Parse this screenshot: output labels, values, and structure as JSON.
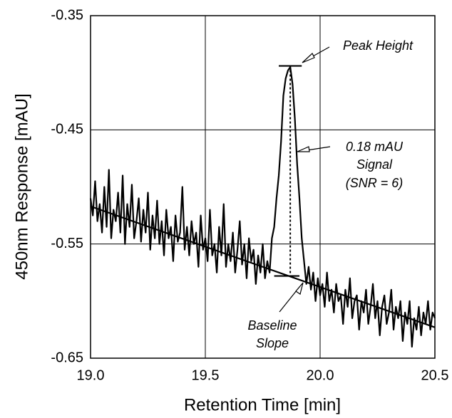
{
  "chart_data": {
    "type": "line",
    "xlabel": "Retention Time [min]",
    "ylabel": "450nm Response [mAU]",
    "xlim": [
      19,
      20.5
    ],
    "ylim": [
      -0.65,
      -0.35
    ],
    "xticks": [
      {
        "value": 19,
        "label": "19.0"
      },
      19.5,
      {
        "value": 20,
        "label": "20.0"
      },
      20.5
    ],
    "yticks": [
      -0.35,
      -0.45,
      -0.55,
      -0.65
    ],
    "grid": true,
    "color": "#000000",
    "annotations": {
      "peak": "Peak Height",
      "signal": [
        "0.18 mAU",
        "Signal",
        "(SNR = 6)"
      ],
      "baseline": [
        "Baseline",
        "Slope"
      ]
    },
    "series": [
      {
        "color": "#000000",
        "style": "signal",
        "x": [
          19.0,
          19.01,
          19.02,
          19.03,
          19.04,
          19.05,
          19.06,
          19.07,
          19.08,
          19.09,
          19.1,
          19.11,
          19.12,
          19.13,
          19.14,
          19.15,
          19.16,
          19.17,
          19.18,
          19.19,
          19.2,
          19.21,
          19.22,
          19.23,
          19.24,
          19.25,
          19.26,
          19.27,
          19.28,
          19.29,
          19.3,
          19.31,
          19.32,
          19.33,
          19.34,
          19.35,
          19.36,
          19.37,
          19.38,
          19.39,
          19.4,
          19.41,
          19.42,
          19.43,
          19.44,
          19.45,
          19.46,
          19.47,
          19.48,
          19.49,
          19.5,
          19.51,
          19.52,
          19.53,
          19.54,
          19.55,
          19.56,
          19.57,
          19.58,
          19.59,
          19.6,
          19.61,
          19.62,
          19.63,
          19.64,
          19.65,
          19.66,
          19.67,
          19.68,
          19.69,
          19.7,
          19.71,
          19.72,
          19.73,
          19.74,
          19.75,
          19.76,
          19.77,
          19.78,
          19.79,
          19.8,
          19.81,
          19.82,
          19.83,
          19.84,
          19.85,
          19.86,
          19.87,
          19.88,
          19.89,
          19.9,
          19.91,
          19.92,
          19.93,
          19.94,
          19.95,
          19.96,
          19.97,
          19.98,
          19.99,
          20.0,
          20.01,
          20.02,
          20.03,
          20.04,
          20.05,
          20.06,
          20.07,
          20.08,
          20.09,
          20.1,
          20.11,
          20.12,
          20.13,
          20.14,
          20.15,
          20.16,
          20.17,
          20.18,
          20.19,
          20.2,
          20.21,
          20.22,
          20.23,
          20.24,
          20.25,
          20.26,
          20.27,
          20.28,
          20.29,
          20.3,
          20.31,
          20.32,
          20.33,
          20.34,
          20.35,
          20.36,
          20.37,
          20.38,
          20.39,
          20.4,
          20.41,
          20.42,
          20.43,
          20.44,
          20.45,
          20.46,
          20.47,
          20.48,
          20.49,
          20.5
        ],
        "values": [
          -0.51,
          -0.525,
          -0.495,
          -0.53,
          -0.515,
          -0.54,
          -0.5,
          -0.535,
          -0.485,
          -0.545,
          -0.52,
          -0.53,
          -0.505,
          -0.54,
          -0.49,
          -0.55,
          -0.515,
          -0.535,
          -0.498,
          -0.545,
          -0.53,
          -0.51,
          -0.548,
          -0.52,
          -0.54,
          -0.505,
          -0.555,
          -0.525,
          -0.545,
          -0.512,
          -0.55,
          -0.53,
          -0.56,
          -0.52,
          -0.545,
          -0.535,
          -0.565,
          -0.525,
          -0.548,
          -0.54,
          -0.5,
          -0.555,
          -0.535,
          -0.56,
          -0.53,
          -0.55,
          -0.54,
          -0.57,
          -0.525,
          -0.555,
          -0.545,
          -0.565,
          -0.52,
          -0.56,
          -0.55,
          -0.575,
          -0.535,
          -0.56,
          -0.515,
          -0.57,
          -0.55,
          -0.565,
          -0.54,
          -0.575,
          -0.555,
          -0.53,
          -0.568,
          -0.55,
          -0.58,
          -0.545,
          -0.565,
          -0.555,
          -0.585,
          -0.56,
          -0.575,
          -0.55,
          -0.58,
          -0.565,
          -0.575,
          -0.545,
          -0.535,
          -0.51,
          -0.49,
          -0.46,
          -0.42,
          -0.405,
          -0.398,
          -0.395,
          -0.41,
          -0.44,
          -0.48,
          -0.51,
          -0.545,
          -0.565,
          -0.585,
          -0.57,
          -0.59,
          -0.575,
          -0.6,
          -0.58,
          -0.595,
          -0.585,
          -0.605,
          -0.575,
          -0.6,
          -0.59,
          -0.61,
          -0.585,
          -0.6,
          -0.595,
          -0.62,
          -0.59,
          -0.605,
          -0.58,
          -0.615,
          -0.6,
          -0.595,
          -0.625,
          -0.6,
          -0.61,
          -0.59,
          -0.62,
          -0.605,
          -0.585,
          -0.615,
          -0.6,
          -0.63,
          -0.605,
          -0.595,
          -0.62,
          -0.61,
          -0.59,
          -0.625,
          -0.605,
          -0.615,
          -0.6,
          -0.635,
          -0.61,
          -0.62,
          -0.6,
          -0.64,
          -0.615,
          -0.625,
          -0.605,
          -0.63,
          -0.61,
          -0.62,
          -0.6,
          -0.625,
          -0.61,
          -0.615
        ]
      },
      {
        "color": "#000000",
        "style": "baseline",
        "x": [
          19,
          20.5
        ],
        "values": [
          -0.517,
          -0.623
        ]
      },
      {
        "color": "#000000",
        "style": "marker",
        "x": [
          19.82,
          19.92
        ],
        "values": [
          -0.394,
          -0.394
        ]
      },
      {
        "color": "#000000",
        "style": "marker",
        "x": [
          19.8,
          19.91
        ],
        "values": [
          -0.578,
          -0.578
        ]
      },
      {
        "color": "#000000",
        "style": "dotted",
        "x": [
          19.87,
          19.87
        ],
        "values": [
          -0.394,
          -0.578
        ]
      }
    ]
  }
}
